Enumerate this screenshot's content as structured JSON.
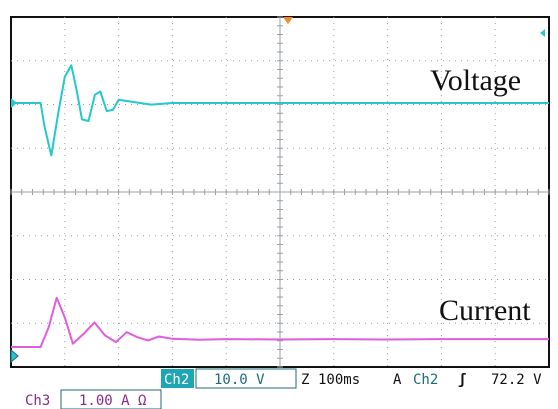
{
  "annotations": {
    "voltage_label": "Voltage",
    "current_label": "Current"
  },
  "status_bar": {
    "ch2_tag": "Ch2",
    "ch2_scale": "10.0 V",
    "timebase_prefix": "Z",
    "timebase": "100ms",
    "trigger_mode": "A",
    "trigger_source": "Ch2",
    "trigger_slope_symbol": "ʃ",
    "trigger_level": "72.2 V",
    "ch3_tag": "Ch3",
    "ch3_scale": "1.00 A Ω"
  },
  "colors": {
    "voltage_trace": "#26c7cf",
    "current_trace": "#e25be0",
    "grid": "#9aa0a6",
    "trigger_marker": "#f08a1c",
    "tag_bg": "#1fa6b5"
  },
  "screen": {
    "grid_divisions_x": 10,
    "grid_divisions_y": 8
  },
  "chart_data": {
    "type": "line",
    "series": [
      {
        "name": "Voltage",
        "x": [
          0.0,
          0.55,
          0.62,
          0.75,
          0.88,
          1.0,
          1.12,
          1.22,
          1.32,
          1.44,
          1.56,
          1.66,
          1.78,
          1.9,
          2.0,
          2.2,
          2.6,
          3.0,
          4.0,
          5.0,
          6.0,
          7.0,
          8.0,
          9.0,
          10.0
        ],
        "y": [
          0.0,
          0.0,
          -0.7,
          -1.6,
          -0.3,
          0.8,
          1.15,
          0.4,
          -0.5,
          -0.55,
          0.25,
          0.35,
          -0.25,
          -0.2,
          0.1,
          0.05,
          -0.05,
          0.0,
          0.0,
          0.0,
          0.0,
          0.0,
          0.0,
          0.0,
          0.0
        ]
      },
      {
        "name": "Current",
        "x": [
          0.0,
          0.55,
          0.7,
          0.85,
          1.0,
          1.15,
          1.35,
          1.55,
          1.75,
          1.95,
          2.15,
          2.35,
          2.55,
          2.75,
          3.0,
          3.5,
          4.0,
          5.0,
          6.0,
          7.0,
          8.0,
          9.0,
          10.0
        ],
        "y": [
          0.0,
          0.0,
          0.6,
          1.5,
          0.9,
          0.1,
          0.4,
          0.75,
          0.35,
          0.15,
          0.45,
          0.3,
          0.2,
          0.32,
          0.25,
          0.22,
          0.24,
          0.23,
          0.24,
          0.23,
          0.24,
          0.24,
          0.24
        ]
      }
    ]
  }
}
